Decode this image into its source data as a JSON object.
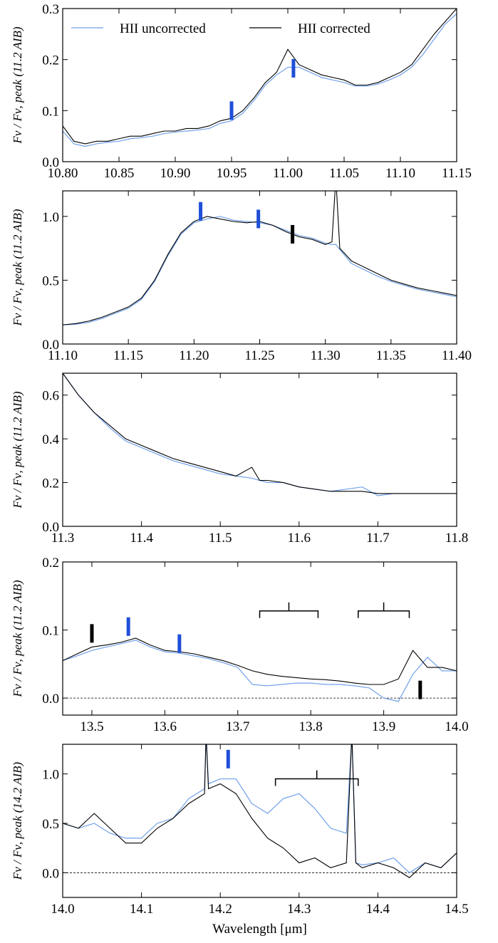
{
  "chart_data": [
    {
      "type": "line",
      "ylabel": "Fν / Fν, peak (11.2 AIB)",
      "legend": true,
      "legend_position": "upper left",
      "x": [
        10.8,
        10.81,
        10.82,
        10.83,
        10.84,
        10.85,
        10.86,
        10.87,
        10.88,
        10.89,
        10.9,
        10.91,
        10.92,
        10.93,
        10.94,
        10.95,
        10.96,
        10.97,
        10.98,
        10.99,
        11.0,
        11.01,
        11.02,
        11.03,
        11.04,
        11.05,
        11.06,
        11.07,
        11.08,
        11.09,
        11.1,
        11.11,
        11.12,
        11.13,
        11.14,
        11.15
      ],
      "series": [
        {
          "name": "HII uncorrected",
          "color": "#6fa0ea",
          "values": [
            0.06,
            0.035,
            0.03,
            0.035,
            0.038,
            0.04,
            0.045,
            0.047,
            0.05,
            0.055,
            0.058,
            0.06,
            0.062,
            0.065,
            0.075,
            0.08,
            0.095,
            0.12,
            0.15,
            0.17,
            0.185,
            0.185,
            0.175,
            0.165,
            0.16,
            0.155,
            0.148,
            0.148,
            0.152,
            0.16,
            0.17,
            0.185,
            0.21,
            0.24,
            0.27,
            0.29
          ]
        },
        {
          "name": "HII corrected",
          "color": "#000000",
          "values": [
            0.07,
            0.04,
            0.035,
            0.04,
            0.04,
            0.045,
            0.05,
            0.05,
            0.055,
            0.06,
            0.06,
            0.065,
            0.065,
            0.07,
            0.08,
            0.085,
            0.1,
            0.125,
            0.155,
            0.175,
            0.22,
            0.19,
            0.18,
            0.17,
            0.165,
            0.16,
            0.15,
            0.15,
            0.155,
            0.165,
            0.175,
            0.19,
            0.22,
            0.25,
            0.275,
            0.3
          ]
        }
      ],
      "markers": [
        {
          "x": 10.95,
          "y": 0.1,
          "color": "#1f4fd8"
        },
        {
          "x": 11.005,
          "y": 0.183,
          "color": "#1f4fd8"
        }
      ],
      "xlim": [
        10.8,
        11.15
      ],
      "xticks": [
        {
          "value": 10.8,
          "label": "10.80"
        },
        {
          "value": 10.85,
          "label": "10.85"
        },
        {
          "value": 10.9,
          "label": "10.90"
        },
        {
          "value": 10.95,
          "label": "10.95"
        },
        {
          "value": 11.0,
          "label": "11.00"
        },
        {
          "value": 11.05,
          "label": "11.05"
        },
        {
          "value": 11.1,
          "label": "11.10"
        },
        {
          "value": 11.15,
          "label": "11.15"
        }
      ],
      "ylim": [
        0,
        0.3
      ],
      "yticks": [
        {
          "value": 0,
          "label": "0.0"
        },
        0.1,
        0.2,
        0.3
      ]
    },
    {
      "type": "line",
      "ylabel": "Fν / Fν, peak (11.2 AIB)",
      "x": [
        11.1,
        11.11,
        11.12,
        11.13,
        11.14,
        11.15,
        11.16,
        11.17,
        11.18,
        11.19,
        11.2,
        11.21,
        11.22,
        11.23,
        11.24,
        11.25,
        11.26,
        11.27,
        11.28,
        11.29,
        11.3,
        11.305,
        11.308,
        11.311,
        11.32,
        11.33,
        11.34,
        11.35,
        11.36,
        11.37,
        11.38,
        11.39,
        11.4
      ],
      "series": [
        {
          "name": "HII uncorrected",
          "color": "#6fa0ea",
          "values": [
            0.15,
            0.155,
            0.17,
            0.2,
            0.24,
            0.28,
            0.35,
            0.49,
            0.69,
            0.86,
            0.95,
            0.98,
            1.0,
            0.97,
            0.96,
            0.95,
            0.93,
            0.89,
            0.85,
            0.83,
            0.79,
            0.78,
            0.78,
            0.74,
            0.63,
            0.58,
            0.53,
            0.49,
            0.46,
            0.43,
            0.41,
            0.39,
            0.37
          ]
        },
        {
          "name": "HII corrected",
          "color": "#000000",
          "values": [
            0.15,
            0.16,
            0.18,
            0.21,
            0.25,
            0.29,
            0.36,
            0.5,
            0.7,
            0.87,
            0.96,
            1.0,
            0.98,
            0.96,
            0.95,
            0.96,
            0.93,
            0.88,
            0.84,
            0.82,
            0.78,
            0.8,
            1.3,
            0.75,
            0.65,
            0.6,
            0.55,
            0.5,
            0.47,
            0.44,
            0.42,
            0.4,
            0.38
          ]
        }
      ],
      "markers": [
        {
          "x": 11.205,
          "y": 1.04,
          "color": "#1f4fd8"
        },
        {
          "x": 11.249,
          "y": 0.98,
          "color": "#1f4fd8"
        },
        {
          "x": 11.275,
          "y": 0.86,
          "color": "#000000"
        }
      ],
      "xlim": [
        11.1,
        11.4
      ],
      "xticks": [
        {
          "value": 11.1,
          "label": "11.10"
        },
        {
          "value": 11.15,
          "label": "11.15"
        },
        {
          "value": 11.2,
          "label": "11.20"
        },
        11.25,
        {
          "value": 11.3,
          "label": "11.30"
        },
        11.35,
        {
          "value": 11.4,
          "label": "11.40"
        }
      ],
      "ylim": [
        0,
        1.2
      ],
      "yticks": [
        {
          "value": 0,
          "label": "0.0"
        },
        0.5,
        {
          "value": 1,
          "label": "1.0"
        }
      ]
    },
    {
      "type": "line",
      "ylabel": "Fν / Fν, peak (11.2 AIB)",
      "x": [
        11.3,
        11.32,
        11.34,
        11.36,
        11.38,
        11.4,
        11.42,
        11.44,
        11.46,
        11.48,
        11.5,
        11.52,
        11.54,
        11.55,
        11.56,
        11.58,
        11.6,
        11.62,
        11.64,
        11.66,
        11.68,
        11.7,
        11.72,
        11.74,
        11.76,
        11.78,
        11.8
      ],
      "series": [
        {
          "name": "HII uncorrected",
          "color": "#6fa0ea",
          "values": [
            0.7,
            0.6,
            0.52,
            0.45,
            0.39,
            0.36,
            0.33,
            0.3,
            0.28,
            0.26,
            0.24,
            0.23,
            0.22,
            0.21,
            0.2,
            0.2,
            0.18,
            0.17,
            0.16,
            0.17,
            0.18,
            0.14,
            0.15,
            0.15,
            0.15,
            0.15,
            0.15
          ]
        },
        {
          "name": "HII corrected",
          "color": "#000000",
          "values": [
            0.7,
            0.6,
            0.52,
            0.46,
            0.4,
            0.37,
            0.34,
            0.31,
            0.29,
            0.27,
            0.25,
            0.23,
            0.27,
            0.21,
            0.21,
            0.2,
            0.18,
            0.17,
            0.16,
            0.16,
            0.16,
            0.15,
            0.15,
            0.15,
            0.15,
            0.15,
            0.15
          ]
        }
      ],
      "xlim": [
        11.3,
        11.8
      ],
      "xticks": [
        11.3,
        11.4,
        11.5,
        11.6,
        11.7,
        11.8
      ],
      "ylim": [
        0,
        0.7
      ],
      "yticks": [
        {
          "value": 0,
          "label": "0.0"
        },
        0.2,
        0.4,
        0.6
      ]
    },
    {
      "type": "line",
      "ylabel": "Fν / Fν, peak (11.2 AIB)",
      "zero_line": true,
      "x": [
        13.46,
        13.48,
        13.5,
        13.52,
        13.54,
        13.56,
        13.58,
        13.6,
        13.62,
        13.64,
        13.66,
        13.68,
        13.7,
        13.72,
        13.74,
        13.76,
        13.78,
        13.8,
        13.82,
        13.84,
        13.86,
        13.88,
        13.9,
        13.92,
        13.94,
        13.96,
        13.98,
        14.0
      ],
      "series": [
        {
          "name": "HII uncorrected",
          "color": "#6fa0ea",
          "values": [
            0.055,
            0.062,
            0.07,
            0.075,
            0.08,
            0.085,
            0.075,
            0.068,
            0.066,
            0.062,
            0.058,
            0.052,
            0.045,
            0.02,
            0.018,
            0.02,
            0.022,
            0.022,
            0.02,
            0.02,
            0.018,
            0.015,
            0,
            -0.005,
            0.035,
            0.06,
            0.04,
            0.04
          ]
        },
        {
          "name": "HII corrected",
          "color": "#000000",
          "values": [
            0.055,
            0.065,
            0.075,
            0.078,
            0.082,
            0.088,
            0.078,
            0.07,
            0.068,
            0.065,
            0.06,
            0.055,
            0.048,
            0.04,
            0.035,
            0.032,
            0.03,
            0.028,
            0.027,
            0.025,
            0.022,
            0.02,
            0.02,
            0.028,
            0.07,
            0.045,
            0.045,
            0.04
          ]
        }
      ],
      "markers": [
        {
          "x": 13.5,
          "y": 0.095,
          "color": "#000000"
        },
        {
          "x": 13.55,
          "y": 0.105,
          "color": "#1f4fd8"
        },
        {
          "x": 13.62,
          "y": 0.08,
          "color": "#1f4fd8"
        },
        {
          "x": 13.95,
          "y": 0.012,
          "color": "#000000"
        }
      ],
      "brackets": [
        {
          "x": [
            13.73,
            13.81
          ],
          "y": 0.128
        },
        {
          "x": [
            13.865,
            13.935
          ],
          "y": 0.128
        }
      ],
      "xlim": [
        13.46,
        14.0
      ],
      "xticks": [
        13.5,
        13.6,
        13.7,
        13.8,
        13.9,
        {
          "value": 14,
          "label": "14.0"
        }
      ],
      "ylim": [
        -0.025,
        0.2
      ],
      "yticks": [
        {
          "value": 0,
          "label": "0.0"
        },
        0.1,
        0.2
      ]
    },
    {
      "type": "line",
      "ylabel": "Fν / Fν, peak (14.2 AIB)",
      "xlabel": "Wavelength [μm]",
      "zero_line": true,
      "x": [
        14.0,
        14.02,
        14.04,
        14.06,
        14.08,
        14.1,
        14.12,
        14.14,
        14.16,
        14.18,
        14.182,
        14.185,
        14.2,
        14.22,
        14.24,
        14.26,
        14.28,
        14.3,
        14.32,
        14.34,
        14.36,
        14.367,
        14.372,
        14.38,
        14.4,
        14.42,
        14.44,
        14.46,
        14.48,
        14.5
      ],
      "series": [
        {
          "name": "HII uncorrected",
          "color": "#6fa0ea",
          "values": [
            0.5,
            0.45,
            0.5,
            0.4,
            0.35,
            0.35,
            0.5,
            0.55,
            0.75,
            0.85,
            1.4,
            0.9,
            0.95,
            0.95,
            0.7,
            0.6,
            0.75,
            0.8,
            0.65,
            0.45,
            0.4,
            1.4,
            0.1,
            0.08,
            0.1,
            0.15,
            0,
            0.1,
            0.05,
            0.2
          ]
        },
        {
          "name": "HII corrected",
          "color": "#000000",
          "values": [
            0.5,
            0.45,
            0.6,
            0.45,
            0.3,
            0.3,
            0.45,
            0.55,
            0.7,
            0.8,
            1.4,
            0.85,
            0.9,
            0.8,
            0.55,
            0.35,
            0.25,
            0.1,
            0.15,
            0.05,
            0.1,
            1.4,
            0.1,
            0.05,
            0.1,
            0.05,
            -0.05,
            0.1,
            0.05,
            0.2
          ]
        }
      ],
      "markers": [
        {
          "x": 14.21,
          "y": 1.15,
          "color": "#1f4fd8"
        }
      ],
      "brackets": [
        {
          "x": [
            14.27,
            14.375
          ],
          "y": 0.95
        }
      ],
      "xlim": [
        14.0,
        14.5
      ],
      "xticks": [
        {
          "value": 14,
          "label": "14.0"
        },
        14.1,
        14.2,
        14.3,
        14.4,
        14.5
      ],
      "ylim": [
        -0.25,
        1.3
      ],
      "yticks": [
        {
          "value": 0,
          "label": "0.0"
        },
        0.5,
        {
          "value": 1,
          "label": "1.0"
        }
      ]
    }
  ]
}
